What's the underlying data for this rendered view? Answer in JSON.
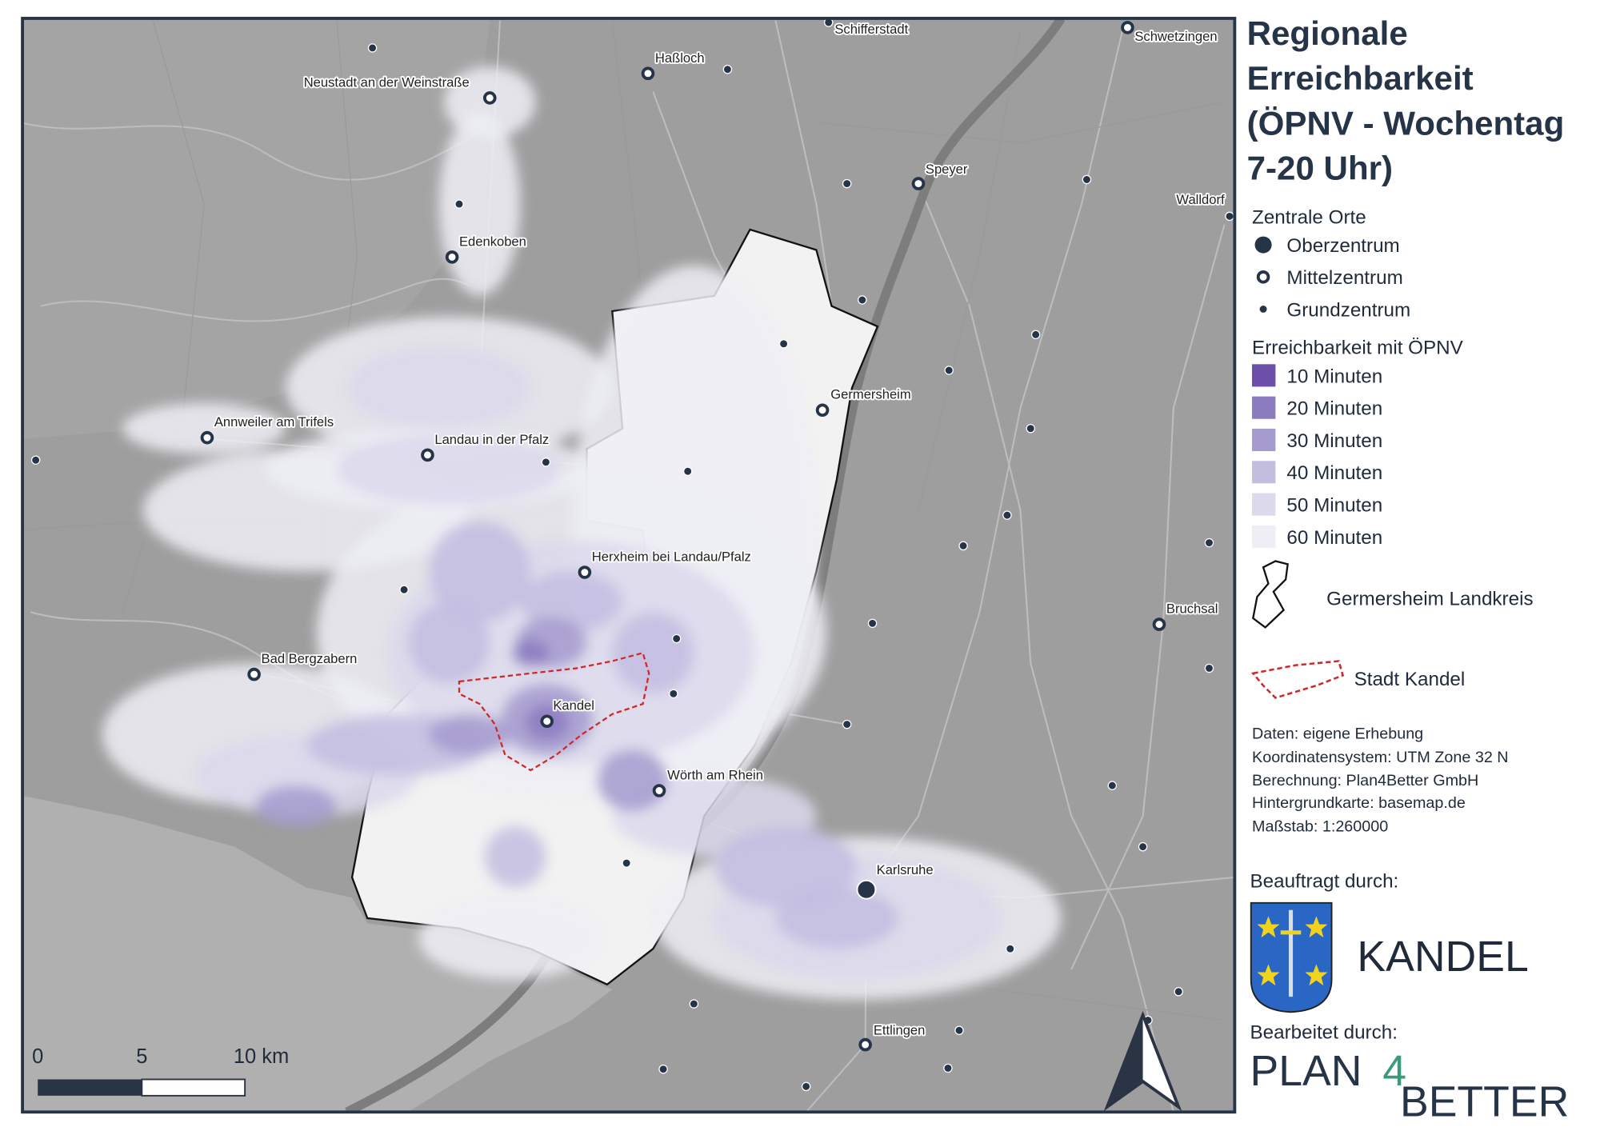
{
  "map": {
    "title": [
      "Regionale",
      "Erreichbarkeit",
      "(ÖPNV - Wochentag",
      "7-20 Uhr)"
    ],
    "places": [
      "Schifferstadt",
      "Schwetzingen",
      "Haßloch",
      "Neustadt an der Weinstraße",
      "Speyer",
      "Walldorf",
      "Edenkoben",
      "Germersheim",
      "Annweiler am Trifels",
      "Landau in der Pfalz",
      "Herxheim bei Landau/Pfalz",
      "Bad Bergzabern",
      "Kandel",
      "Wörth am Rhein",
      "Karlsruhe",
      "Ettlingen",
      "Bruchsal"
    ],
    "legend_places": {
      "title": "Zentrale Orte",
      "items": [
        "Oberzentrum",
        "Mittelzentrum",
        "Grundzentrum"
      ]
    },
    "legend_reach": {
      "title": "Erreichbarkeit mit ÖPNV",
      "items": [
        "10 Minuten",
        "20 Minuten",
        "30 Minuten",
        "40 Minuten",
        "50 Minuten",
        "60 Minuten"
      ]
    },
    "legend_areas": [
      "Germersheim Landkreis",
      "Stadt Kandel"
    ],
    "credits": [
      "Daten: eigene Erhebung",
      "Koordinatensystem: UTM Zone 32 N",
      "Berechnung: Plan4Better GmbH",
      "Hintergrundkarte: basemap.de",
      "Maßstab: 1:260000"
    ],
    "commissioned_by": "Beauftragt durch:",
    "client": "KANDEL",
    "edited_by": "Bearbeitet durch:",
    "logo": [
      "PLAN",
      "4",
      "BETTER"
    ],
    "scale_bar": [
      "0",
      "5",
      "10 km"
    ]
  }
}
